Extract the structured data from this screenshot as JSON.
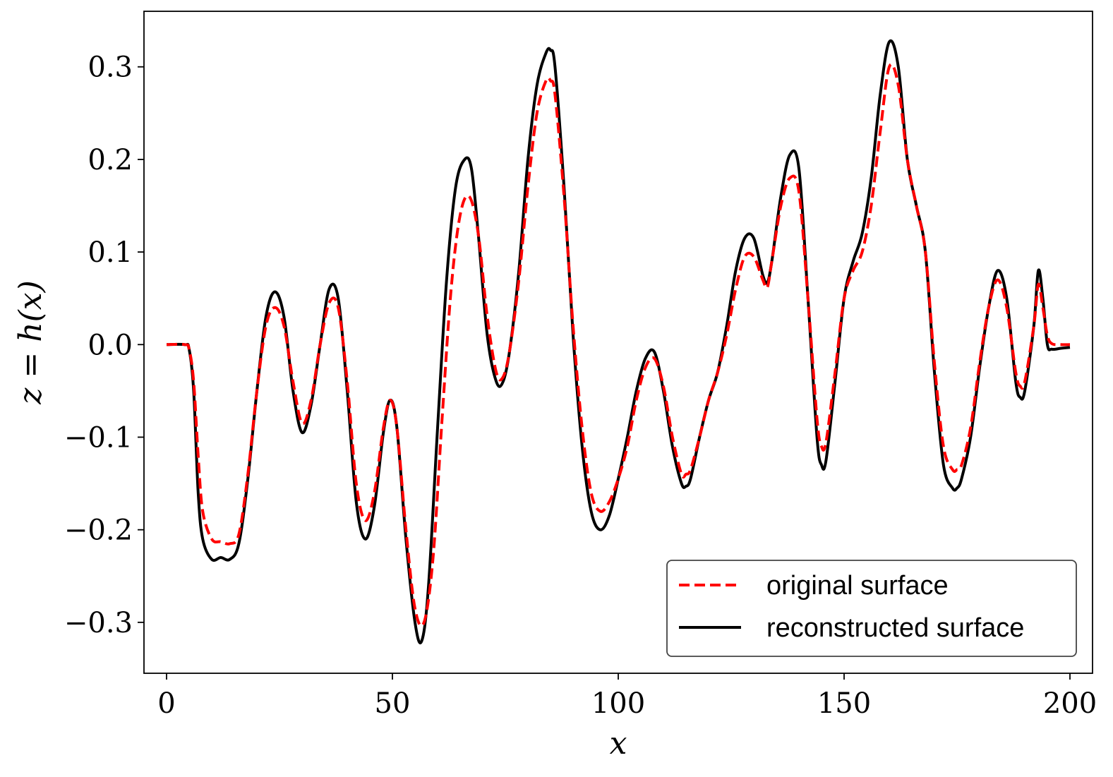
{
  "chart_data": {
    "type": "line",
    "title": "",
    "xlabel": "x",
    "ylabel": "z = h(x)",
    "xlim": [
      -5,
      205
    ],
    "ylim": [
      -0.355,
      0.36
    ],
    "xticks": [
      0,
      50,
      100,
      150,
      200
    ],
    "xtick_labels": [
      "0",
      "50",
      "100",
      "150",
      "200"
    ],
    "yticks": [
      -0.3,
      -0.2,
      -0.1,
      0.0,
      0.1,
      0.2,
      0.3
    ],
    "ytick_labels": [
      "−0.3",
      "−0.2",
      "−0.1",
      "0.0",
      "0.1",
      "0.2",
      "0.3"
    ],
    "grid": false,
    "legend_position": "bottom-right",
    "series": [
      {
        "name": "original surface",
        "color": "#ff0000",
        "style": "dashed",
        "x": [
          0,
          4,
          5,
          6,
          7,
          8,
          10,
          12,
          14,
          16,
          18,
          20,
          22,
          24,
          26,
          28,
          30,
          32,
          34,
          36,
          38,
          40,
          42,
          44,
          46,
          48,
          49.5,
          51,
          53,
          55,
          57,
          59,
          61,
          63,
          65,
          67,
          69,
          71,
          73,
          74.5,
          76,
          78,
          80,
          82,
          84,
          85,
          86,
          88,
          90,
          92,
          94,
          96,
          98,
          100,
          102,
          104,
          106,
          108,
          110,
          112,
          114,
          115,
          116,
          118,
          120,
          122,
          124,
          126,
          128,
          130,
          132,
          133,
          134,
          136,
          138,
          140,
          142,
          144,
          145,
          146,
          148,
          150,
          152,
          154,
          156,
          158,
          160,
          162,
          164,
          166,
          168,
          170,
          172,
          174,
          175,
          176,
          178,
          180,
          182,
          184,
          186,
          188,
          189,
          190,
          192,
          193,
          194,
          195,
          196,
          198,
          200
        ],
        "y": [
          0.0,
          0.0,
          -0.005,
          -0.04,
          -0.12,
          -0.18,
          -0.21,
          -0.213,
          -0.215,
          -0.205,
          -0.14,
          -0.05,
          0.02,
          0.04,
          0.02,
          -0.04,
          -0.085,
          -0.06,
          0.0,
          0.045,
          0.04,
          -0.04,
          -0.15,
          -0.19,
          -0.16,
          -0.09,
          -0.06,
          -0.09,
          -0.2,
          -0.285,
          -0.3,
          -0.23,
          -0.08,
          0.06,
          0.14,
          0.16,
          0.12,
          0.03,
          -0.03,
          -0.035,
          -0.005,
          0.07,
          0.17,
          0.25,
          0.285,
          0.285,
          0.27,
          0.16,
          0.02,
          -0.09,
          -0.16,
          -0.18,
          -0.17,
          -0.145,
          -0.11,
          -0.06,
          -0.025,
          -0.015,
          -0.045,
          -0.1,
          -0.14,
          -0.14,
          -0.135,
          -0.1,
          -0.06,
          -0.03,
          0.01,
          0.06,
          0.095,
          0.095,
          0.07,
          0.062,
          0.09,
          0.15,
          0.18,
          0.165,
          0.05,
          -0.08,
          -0.11,
          -0.105,
          -0.03,
          0.05,
          0.08,
          0.1,
          0.15,
          0.23,
          0.3,
          0.28,
          0.2,
          0.15,
          0.1,
          -0.02,
          -0.11,
          -0.135,
          -0.135,
          -0.13,
          -0.09,
          -0.02,
          0.04,
          0.07,
          0.04,
          -0.03,
          -0.045,
          -0.04,
          0.02,
          0.065,
          0.04,
          0.01,
          0.001,
          0.0,
          0.0
        ]
      },
      {
        "name": "reconstructed surface",
        "color": "#000000",
        "style": "solid",
        "x": [
          0,
          4,
          5,
          6,
          7,
          8,
          10,
          12,
          14,
          16,
          18,
          20,
          22,
          24,
          26,
          28,
          30,
          32,
          34,
          36,
          38,
          40,
          42,
          44,
          46,
          48,
          49.5,
          51,
          53,
          55,
          56.5,
          58,
          60,
          62,
          64,
          66,
          67.5,
          69,
          71,
          73,
          74.5,
          76,
          78,
          80,
          82,
          84,
          85,
          86,
          88,
          90,
          92,
          94,
          96,
          98,
          100,
          102,
          104,
          106,
          108,
          110,
          112,
          114,
          115,
          116,
          118,
          120,
          122,
          124,
          126,
          128,
          130,
          132,
          133,
          134,
          136,
          138,
          140,
          142,
          144,
          145,
          146,
          148,
          150,
          152,
          154,
          156,
          158,
          160,
          162,
          164,
          166,
          168,
          170,
          172,
          174,
          175,
          176,
          178,
          180,
          182,
          184,
          186,
          188,
          189,
          190,
          192,
          193,
          194,
          195,
          196,
          198,
          200
        ],
        "y": [
          0.0,
          0.0,
          -0.005,
          -0.05,
          -0.16,
          -0.21,
          -0.232,
          -0.23,
          -0.232,
          -0.215,
          -0.145,
          -0.05,
          0.03,
          0.057,
          0.03,
          -0.05,
          -0.095,
          -0.065,
          0.0,
          0.06,
          0.05,
          -0.05,
          -0.17,
          -0.21,
          -0.175,
          -0.095,
          -0.06,
          -0.09,
          -0.21,
          -0.3,
          -0.32,
          -0.26,
          -0.09,
          0.07,
          0.17,
          0.2,
          0.19,
          0.12,
          0.01,
          -0.04,
          -0.04,
          -0.005,
          0.08,
          0.2,
          0.28,
          0.315,
          0.318,
          0.3,
          0.17,
          0.01,
          -0.11,
          -0.18,
          -0.2,
          -0.185,
          -0.145,
          -0.1,
          -0.05,
          -0.015,
          -0.008,
          -0.05,
          -0.11,
          -0.15,
          -0.153,
          -0.145,
          -0.1,
          -0.06,
          -0.03,
          0.02,
          0.08,
          0.115,
          0.115,
          0.075,
          0.067,
          0.09,
          0.16,
          0.205,
          0.19,
          0.05,
          -0.1,
          -0.13,
          -0.125,
          -0.04,
          0.05,
          0.09,
          0.12,
          0.18,
          0.27,
          0.327,
          0.3,
          0.2,
          0.15,
          0.1,
          -0.03,
          -0.13,
          -0.155,
          -0.155,
          -0.145,
          -0.1,
          -0.025,
          0.04,
          0.08,
          0.05,
          -0.04,
          -0.057,
          -0.05,
          0.02,
          0.08,
          0.05,
          0.0,
          -0.005,
          -0.004,
          -0.003
        ]
      }
    ]
  }
}
